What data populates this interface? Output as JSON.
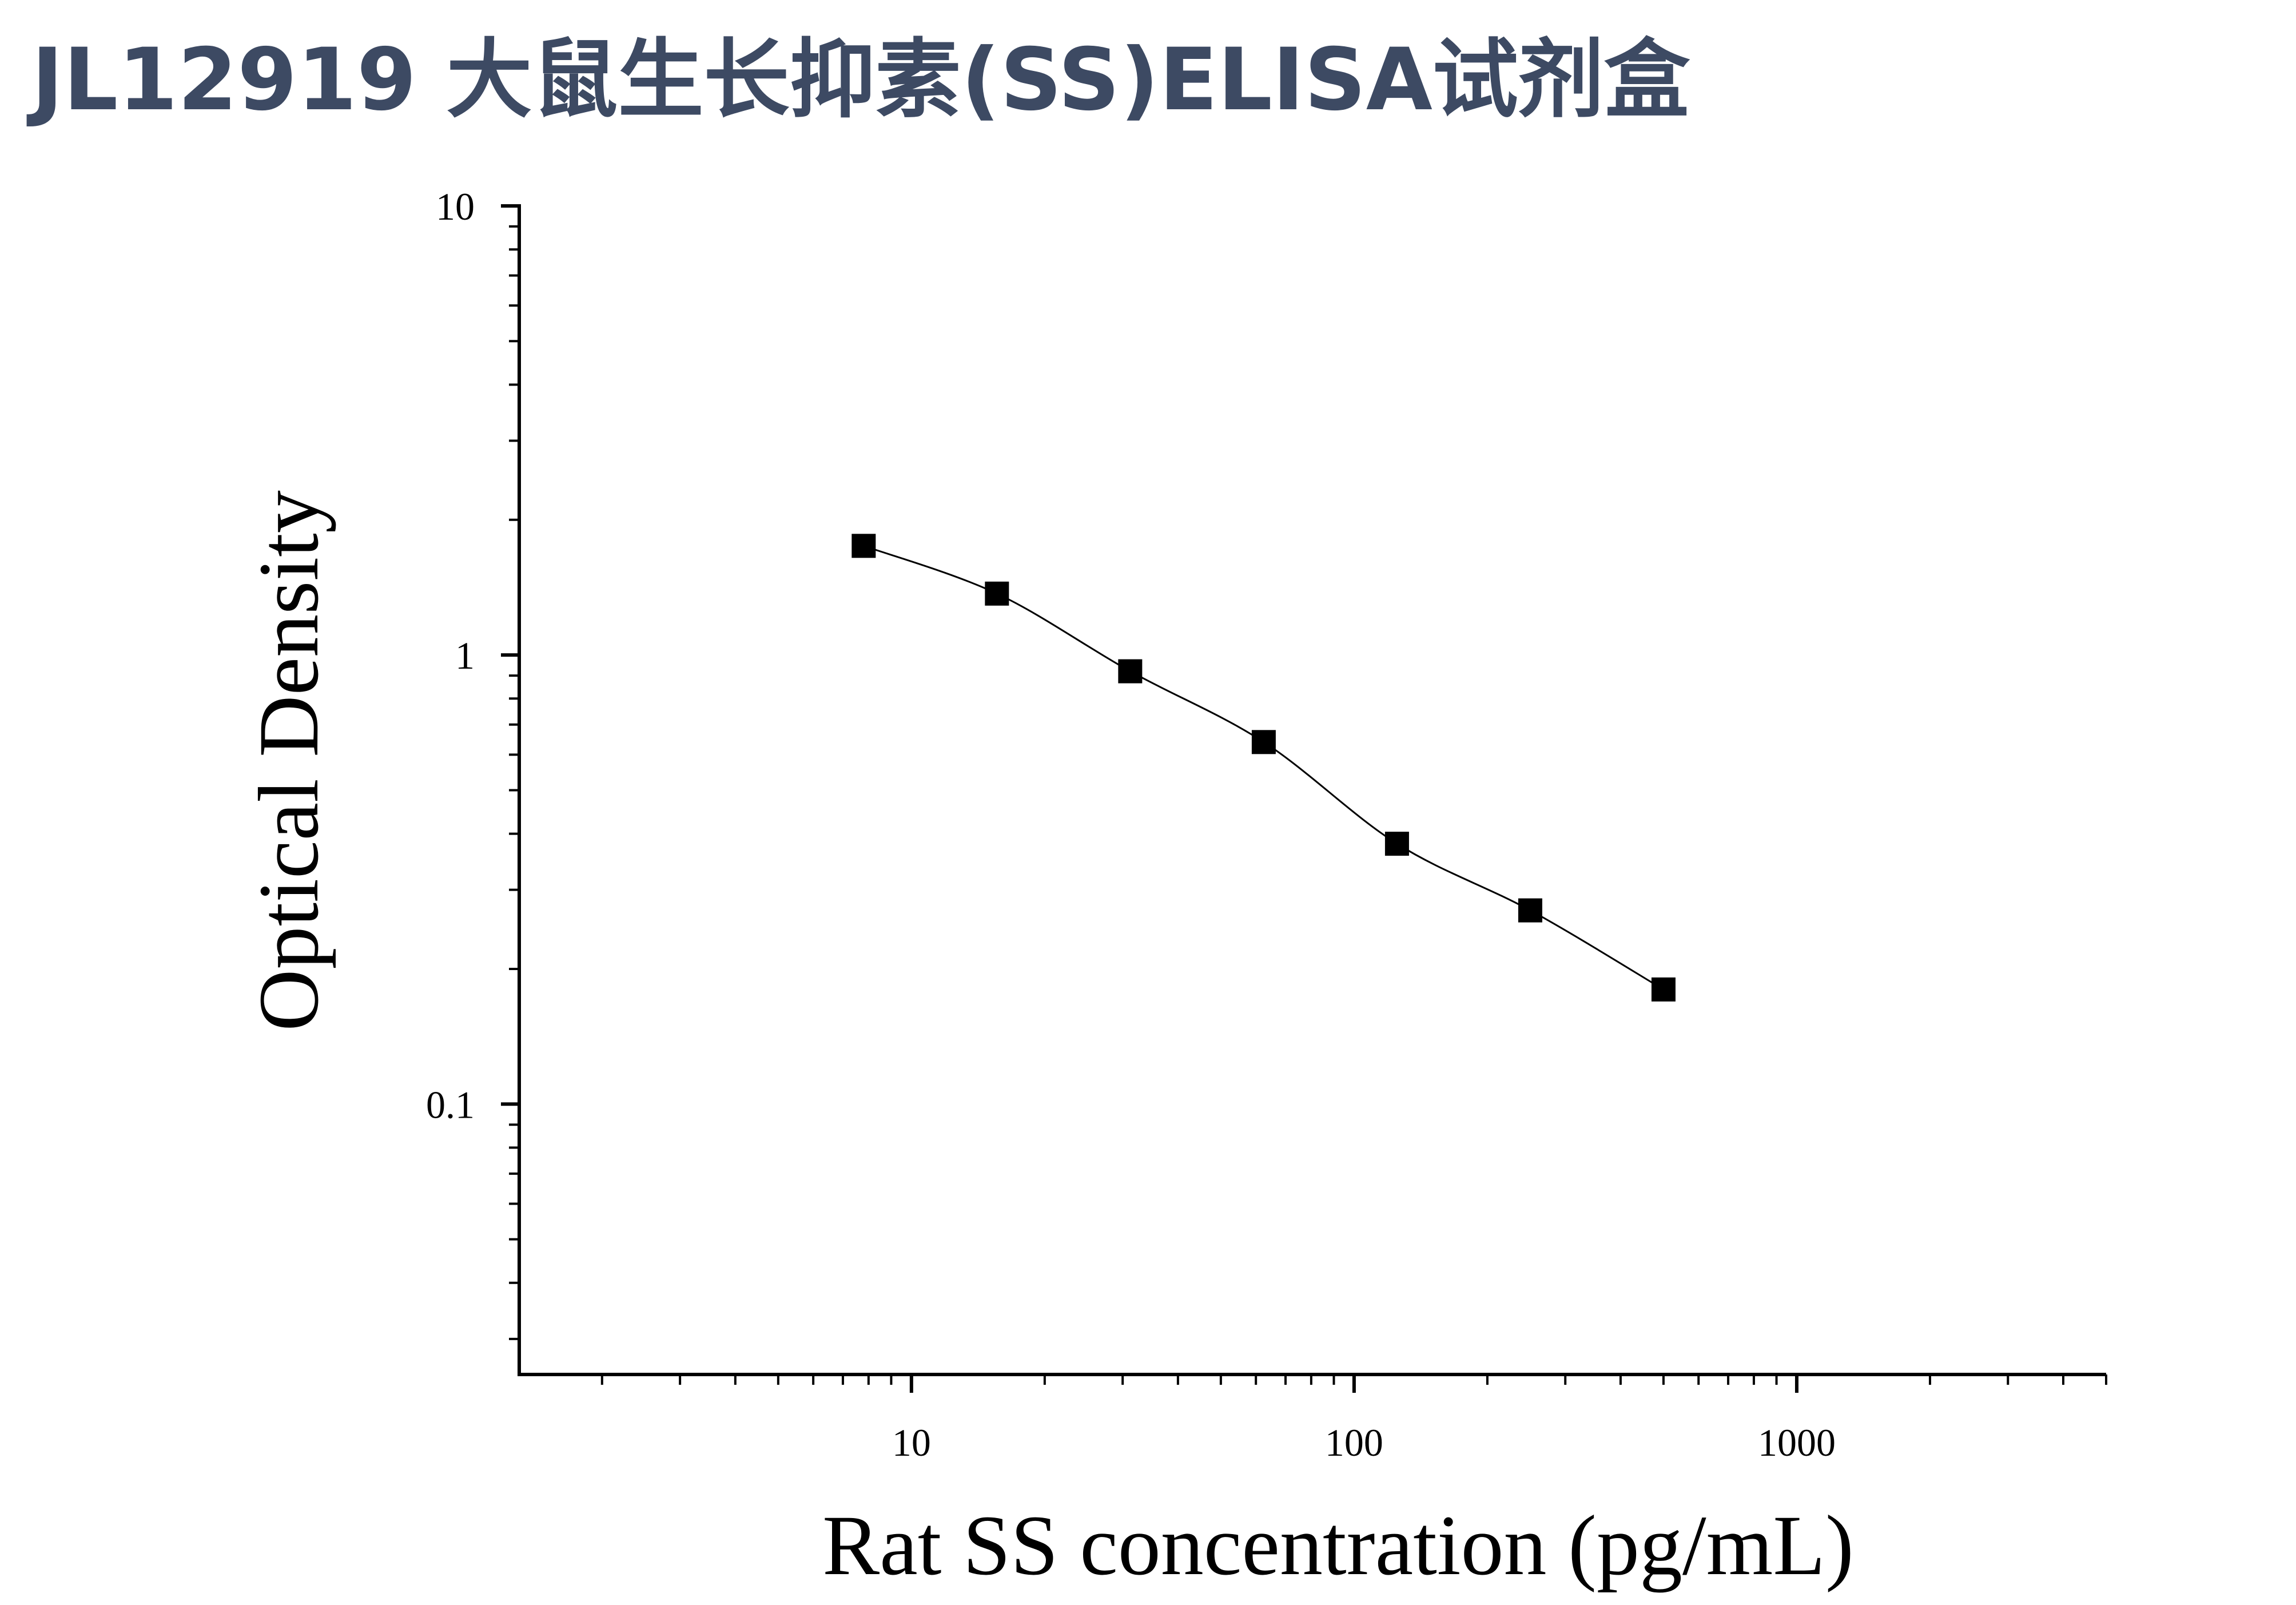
{
  "title": "JL12919 大鼠生长抑素(SS)ELISA试剂盒",
  "colors": {
    "title": "#3d4a63",
    "axis": "#000000",
    "marker": "#000000",
    "curve": "#000000"
  },
  "chart_data": {
    "type": "scatter",
    "title": "",
    "xlabel": "Rat SS concentration (pg/mL)",
    "ylabel": "Optical Density",
    "x_scale": "log",
    "y_scale": "log",
    "xlim": [
      1.3,
      5000
    ],
    "ylim": [
      0.025,
      10
    ],
    "x_tick_labels": [
      "10",
      "100",
      "1000"
    ],
    "x_tick_values": [
      10,
      100,
      1000
    ],
    "y_tick_labels": [
      "0.1",
      "1",
      "10"
    ],
    "y_tick_values": [
      0.1,
      1,
      10
    ],
    "grid": false,
    "legend": "none",
    "fit_curve": true,
    "marker": "square",
    "series": [
      {
        "x": [
          7.8,
          15.6,
          31.2,
          62.5,
          125,
          250,
          500
        ],
        "y": [
          1.75,
          1.37,
          0.92,
          0.64,
          0.38,
          0.27,
          0.18
        ]
      }
    ]
  }
}
